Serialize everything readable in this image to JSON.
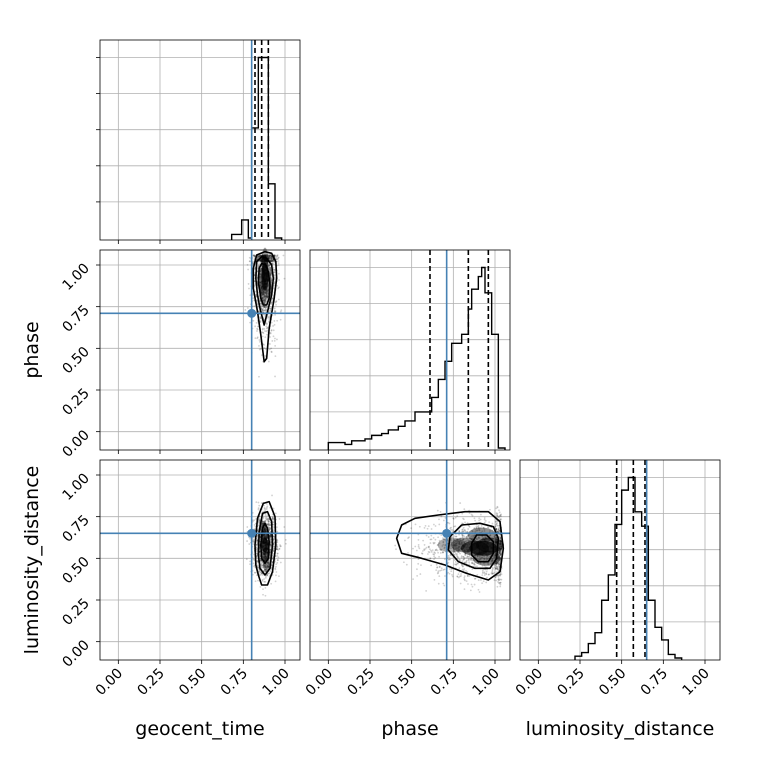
{
  "chart_data": {
    "type": "corner",
    "parameters": [
      "geocent_time",
      "phase",
      "luminosity_distance"
    ],
    "tick_labels": [
      "0.00",
      "0.25",
      "0.50",
      "0.75",
      "1.00"
    ],
    "axis_range": [
      -0.11,
      1.09
    ],
    "truths": [
      0.8,
      0.71,
      0.65
    ],
    "truth_color": "#4682b4",
    "grid": true,
    "histograms": {
      "geocent_time": {
        "bin_edges": [
          0.68,
          0.74,
          0.78,
          0.8,
          0.84,
          0.88,
          0.9,
          0.94,
          0.98
        ],
        "density": [
          0.02,
          0.1,
          0.0,
          0.61,
          1.0,
          1.0,
          0.3,
          0.0
        ],
        "quantiles": [
          0.82,
          0.86,
          0.9
        ]
      },
      "phase": {
        "bin_edges": [
          0.0,
          0.1,
          0.14,
          0.22,
          0.26,
          0.32,
          0.36,
          0.42,
          0.46,
          0.52,
          0.56,
          0.62,
          0.66,
          0.7,
          0.74,
          0.8,
          0.84,
          0.86,
          0.9,
          0.92,
          0.94,
          0.98,
          1.02,
          1.06
        ],
        "density": [
          0.03,
          0.02,
          0.04,
          0.05,
          0.07,
          0.08,
          0.1,
          0.12,
          0.15,
          0.2,
          0.2,
          0.28,
          0.38,
          0.48,
          0.58,
          0.63,
          0.77,
          0.88,
          0.95,
          1.0,
          0.86,
          0.63,
          0.0
        ],
        "quantiles": [
          0.61,
          0.84,
          0.96
        ]
      },
      "luminosity_distance": {
        "bin_edges": [
          0.22,
          0.26,
          0.3,
          0.34,
          0.38,
          0.42,
          0.46,
          0.5,
          0.54,
          0.58,
          0.62,
          0.66,
          0.7,
          0.74,
          0.78,
          0.82,
          0.86
        ],
        "density": [
          0.01,
          0.03,
          0.08,
          0.14,
          0.32,
          0.46,
          0.74,
          0.93,
          1.0,
          0.81,
          0.73,
          0.32,
          0.17,
          0.1,
          0.02,
          0.0
        ],
        "quantiles": [
          0.47,
          0.57,
          0.64
        ]
      }
    },
    "contour_panels": [
      {
        "x_param": "geocent_time",
        "y_param": "phase",
        "peak": [
          0.88,
          0.93
        ],
        "contours": [
          {
            "level": 1,
            "points": [
              [
                0.855,
                0.8
              ],
              [
                0.87,
                0.76
              ],
              [
                0.89,
                0.76
              ],
              [
                0.905,
                0.8
              ],
              [
                0.91,
                0.88
              ],
              [
                0.9,
                0.96
              ],
              [
                0.885,
                1.0
              ],
              [
                0.86,
                1.01
              ],
              [
                0.845,
                0.98
              ],
              [
                0.84,
                0.9
              ]
            ]
          },
          {
            "level": 2,
            "points": [
              [
                0.85,
                0.74
              ],
              [
                0.875,
                0.64
              ],
              [
                0.895,
                0.72
              ],
              [
                0.92,
                0.82
              ],
              [
                0.93,
                0.92
              ],
              [
                0.92,
                1.0
              ],
              [
                0.89,
                1.04
              ],
              [
                0.86,
                1.05
              ],
              [
                0.83,
                1.02
              ],
              [
                0.825,
                0.92
              ],
              [
                0.835,
                0.82
              ]
            ]
          },
          {
            "level": 3,
            "points": [
              [
                0.855,
                0.58
              ],
              [
                0.875,
                0.42
              ],
              [
                0.89,
                0.44
              ],
              [
                0.905,
                0.62
              ],
              [
                0.935,
                0.8
              ],
              [
                0.95,
                0.92
              ],
              [
                0.945,
                1.02
              ],
              [
                0.92,
                1.07
              ],
              [
                0.88,
                1.08
              ],
              [
                0.83,
                1.06
              ],
              [
                0.81,
                0.98
              ],
              [
                0.81,
                0.86
              ],
              [
                0.835,
                0.72
              ]
            ]
          }
        ],
        "density": [
          [
            0.88,
            0.93,
            1.0
          ],
          [
            0.88,
            0.98,
            0.75
          ],
          [
            0.86,
            0.9,
            0.55
          ],
          [
            0.9,
            0.88,
            0.5
          ],
          [
            0.87,
            0.84,
            0.35
          ],
          [
            0.88,
            1.02,
            0.35
          ]
        ]
      },
      {
        "x_param": "geocent_time",
        "y_param": "luminosity_distance",
        "peak": [
          0.88,
          0.58
        ],
        "contours": [
          {
            "level": 1,
            "points": [
              [
                0.86,
                0.5
              ],
              [
                0.88,
                0.47
              ],
              [
                0.9,
                0.5
              ],
              [
                0.905,
                0.6
              ],
              [
                0.895,
                0.68
              ],
              [
                0.88,
                0.71
              ],
              [
                0.865,
                0.68
              ],
              [
                0.855,
                0.58
              ]
            ]
          },
          {
            "level": 2,
            "points": [
              [
                0.85,
                0.44
              ],
              [
                0.88,
                0.4
              ],
              [
                0.91,
                0.44
              ],
              [
                0.925,
                0.58
              ],
              [
                0.92,
                0.72
              ],
              [
                0.895,
                0.78
              ],
              [
                0.865,
                0.77
              ],
              [
                0.845,
                0.66
              ],
              [
                0.84,
                0.52
              ]
            ]
          },
          {
            "level": 3,
            "points": [
              [
                0.84,
                0.4
              ],
              [
                0.86,
                0.34
              ],
              [
                0.895,
                0.34
              ],
              [
                0.925,
                0.42
              ],
              [
                0.945,
                0.58
              ],
              [
                0.94,
                0.75
              ],
              [
                0.905,
                0.84
              ],
              [
                0.87,
                0.83
              ],
              [
                0.835,
                0.74
              ],
              [
                0.82,
                0.58
              ],
              [
                0.825,
                0.46
              ]
            ]
          }
        ],
        "density": [
          [
            0.88,
            0.58,
            1.0
          ],
          [
            0.875,
            0.63,
            0.75
          ],
          [
            0.885,
            0.52,
            0.6
          ],
          [
            0.87,
            0.68,
            0.45
          ],
          [
            0.89,
            0.46,
            0.35
          ]
        ]
      },
      {
        "x_param": "phase",
        "y_param": "luminosity_distance",
        "peak": [
          0.93,
          0.56
        ],
        "contours": [
          {
            "level": 1,
            "points": [
              [
                0.86,
                0.52
              ],
              [
                0.9,
                0.48
              ],
              [
                0.96,
                0.48
              ],
              [
                0.99,
                0.53
              ],
              [
                0.99,
                0.6
              ],
              [
                0.95,
                0.64
              ],
              [
                0.89,
                0.64
              ],
              [
                0.86,
                0.59
              ]
            ]
          },
          {
            "level": 2,
            "points": [
              [
                0.72,
                0.55
              ],
              [
                0.78,
                0.48
              ],
              [
                0.88,
                0.44
              ],
              [
                0.97,
                0.44
              ],
              [
                1.01,
                0.5
              ],
              [
                1.02,
                0.62
              ],
              [
                0.99,
                0.69
              ],
              [
                0.91,
                0.71
              ],
              [
                0.8,
                0.7
              ],
              [
                0.73,
                0.63
              ]
            ]
          },
          {
            "level": 3,
            "points": [
              [
                0.41,
                0.62
              ],
              [
                0.44,
                0.53
              ],
              [
                0.56,
                0.5
              ],
              [
                0.7,
                0.46
              ],
              [
                0.83,
                0.41
              ],
              [
                0.96,
                0.37
              ],
              [
                1.03,
                0.42
              ],
              [
                1.05,
                0.56
              ],
              [
                1.03,
                0.72
              ],
              [
                0.96,
                0.78
              ],
              [
                0.82,
                0.78
              ],
              [
                0.66,
                0.76
              ],
              [
                0.52,
                0.74
              ],
              [
                0.44,
                0.7
              ]
            ]
          }
        ],
        "density": [
          [
            0.93,
            0.56,
            1.0
          ],
          [
            0.88,
            0.56,
            0.7
          ],
          [
            0.97,
            0.58,
            0.7
          ],
          [
            0.82,
            0.58,
            0.45
          ],
          [
            0.95,
            0.5,
            0.5
          ],
          [
            0.92,
            0.64,
            0.45
          ],
          [
            0.74,
            0.58,
            0.25
          ]
        ]
      }
    ],
    "scatter_spread": {
      "geocent_time": 0.035,
      "phase": 0.18,
      "luminosity_distance": 0.09
    }
  }
}
